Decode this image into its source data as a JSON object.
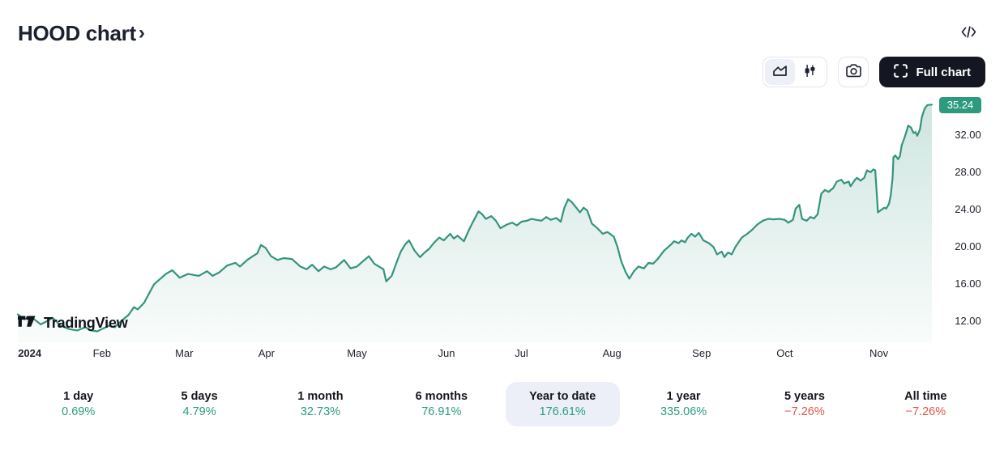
{
  "header": {
    "title": "HOOD chart",
    "chevron": "›"
  },
  "toolbar": {
    "full_chart_label": "Full chart"
  },
  "attribution": {
    "label": "TradingView"
  },
  "colors": {
    "accent": "#2e9a7d",
    "positive": "#2a9d7e",
    "negative": "#e0544b",
    "selected_bg": "#edeff8",
    "dark_button": "#141722",
    "line": "#33947c"
  },
  "chart_data": {
    "type": "area",
    "symbol": "HOOD",
    "title": "HOOD chart",
    "last_price": "35.24",
    "last_price_value": 35.24,
    "ylim": [
      9.7,
      35.7
    ],
    "grid": false,
    "legend_position": "none",
    "y_ticks": [
      {
        "label": "32.00",
        "value": 32
      },
      {
        "label": "28.00",
        "value": 28
      },
      {
        "label": "24.00",
        "value": 24
      },
      {
        "label": "20.00",
        "value": 20
      },
      {
        "label": "16.00",
        "value": 16
      },
      {
        "label": "12.00",
        "value": 12
      }
    ],
    "x_ticks": [
      {
        "label": "2024",
        "pos": 0.013,
        "bold": true
      },
      {
        "label": "Feb",
        "pos": 0.092
      },
      {
        "label": "Mar",
        "pos": 0.182
      },
      {
        "label": "Apr",
        "pos": 0.272
      },
      {
        "label": "May",
        "pos": 0.371
      },
      {
        "label": "Jun",
        "pos": 0.469
      },
      {
        "label": "Jul",
        "pos": 0.551
      },
      {
        "label": "Aug",
        "pos": 0.65
      },
      {
        "label": "Sep",
        "pos": 0.748
      },
      {
        "label": "Oct",
        "pos": 0.839
      },
      {
        "label": "Nov",
        "pos": 0.942
      }
    ],
    "points": [
      [
        0,
        12.78
      ],
      [
        0.007,
        12.26
      ],
      [
        0.016,
        12.4
      ],
      [
        0.025,
        11.7
      ],
      [
        0.032,
        12.05
      ],
      [
        0.038,
        12.4
      ],
      [
        0.047,
        11.57
      ],
      [
        0.056,
        11.2
      ],
      [
        0.065,
        11.05
      ],
      [
        0.074,
        11.4
      ],
      [
        0.08,
        11.05
      ],
      [
        0.087,
        10.96
      ],
      [
        0.092,
        11.2
      ],
      [
        0.1,
        11.57
      ],
      [
        0.106,
        11.4
      ],
      [
        0.113,
        12.05
      ],
      [
        0.121,
        12.7
      ],
      [
        0.127,
        13.56
      ],
      [
        0.131,
        13.3
      ],
      [
        0.138,
        14.0
      ],
      [
        0.149,
        16.0
      ],
      [
        0.162,
        17.1
      ],
      [
        0.169,
        17.5
      ],
      [
        0.177,
        16.7
      ],
      [
        0.186,
        17.1
      ],
      [
        0.198,
        16.9
      ],
      [
        0.207,
        17.4
      ],
      [
        0.213,
        16.9
      ],
      [
        0.22,
        17.25
      ],
      [
        0.229,
        18.0
      ],
      [
        0.238,
        18.3
      ],
      [
        0.243,
        17.9
      ],
      [
        0.251,
        18.6
      ],
      [
        0.257,
        19.0
      ],
      [
        0.262,
        19.3
      ],
      [
        0.266,
        20.2
      ],
      [
        0.271,
        19.9
      ],
      [
        0.277,
        19.0
      ],
      [
        0.284,
        18.6
      ],
      [
        0.291,
        18.8
      ],
      [
        0.3,
        18.7
      ],
      [
        0.309,
        17.9
      ],
      [
        0.316,
        17.6
      ],
      [
        0.322,
        18.1
      ],
      [
        0.329,
        17.4
      ],
      [
        0.335,
        17.9
      ],
      [
        0.342,
        17.6
      ],
      [
        0.348,
        17.8
      ],
      [
        0.357,
        18.6
      ],
      [
        0.364,
        17.7
      ],
      [
        0.371,
        17.9
      ],
      [
        0.378,
        18.5
      ],
      [
        0.384,
        19.0
      ],
      [
        0.39,
        18.2
      ],
      [
        0.395,
        17.9
      ],
      [
        0.4,
        17.6
      ],
      [
        0.403,
        16.3
      ],
      [
        0.409,
        16.9
      ],
      [
        0.415,
        18.5
      ],
      [
        0.419,
        19.5
      ],
      [
        0.424,
        20.3
      ],
      [
        0.428,
        20.7
      ],
      [
        0.434,
        19.6
      ],
      [
        0.44,
        18.9
      ],
      [
        0.445,
        19.4
      ],
      [
        0.45,
        19.8
      ],
      [
        0.455,
        20.4
      ],
      [
        0.461,
        21.0
      ],
      [
        0.466,
        20.7
      ],
      [
        0.473,
        21.4
      ],
      [
        0.477,
        20.9
      ],
      [
        0.481,
        21.2
      ],
      [
        0.488,
        20.6
      ],
      [
        0.493,
        21.7
      ],
      [
        0.497,
        22.5
      ],
      [
        0.504,
        23.8
      ],
      [
        0.508,
        23.5
      ],
      [
        0.512,
        23.0
      ],
      [
        0.518,
        23.3
      ],
      [
        0.523,
        22.8
      ],
      [
        0.528,
        22.0
      ],
      [
        0.535,
        22.4
      ],
      [
        0.541,
        22.6
      ],
      [
        0.546,
        22.3
      ],
      [
        0.551,
        22.7
      ],
      [
        0.557,
        22.8
      ],
      [
        0.562,
        23.0
      ],
      [
        0.567,
        22.9
      ],
      [
        0.573,
        22.8
      ],
      [
        0.578,
        23.2
      ],
      [
        0.583,
        22.9
      ],
      [
        0.589,
        23.1
      ],
      [
        0.594,
        22.7
      ],
      [
        0.598,
        24.2
      ],
      [
        0.602,
        25.1
      ],
      [
        0.606,
        24.8
      ],
      [
        0.611,
        24.2
      ],
      [
        0.615,
        23.7
      ],
      [
        0.619,
        24.2
      ],
      [
        0.623,
        23.9
      ],
      [
        0.628,
        22.5
      ],
      [
        0.634,
        22.0
      ],
      [
        0.64,
        21.4
      ],
      [
        0.645,
        21.6
      ],
      [
        0.652,
        21.1
      ],
      [
        0.656,
        20.0
      ],
      [
        0.66,
        18.5
      ],
      [
        0.665,
        17.3
      ],
      [
        0.669,
        16.6
      ],
      [
        0.674,
        17.4
      ],
      [
        0.679,
        17.9
      ],
      [
        0.685,
        17.7
      ],
      [
        0.69,
        18.3
      ],
      [
        0.695,
        18.2
      ],
      [
        0.7,
        18.7
      ],
      [
        0.707,
        19.6
      ],
      [
        0.714,
        20.2
      ],
      [
        0.718,
        20.6
      ],
      [
        0.723,
        20.4
      ],
      [
        0.726,
        20.7
      ],
      [
        0.73,
        20.5
      ],
      [
        0.733,
        21.0
      ],
      [
        0.737,
        21.4
      ],
      [
        0.741,
        21.1
      ],
      [
        0.745,
        21.5
      ],
      [
        0.75,
        20.7
      ],
      [
        0.756,
        20.4
      ],
      [
        0.761,
        20.0
      ],
      [
        0.765,
        19.2
      ],
      [
        0.77,
        19.5
      ],
      [
        0.773,
        18.9
      ],
      [
        0.777,
        19.4
      ],
      [
        0.781,
        19.2
      ],
      [
        0.785,
        20.0
      ],
      [
        0.792,
        21.0
      ],
      [
        0.798,
        21.4
      ],
      [
        0.803,
        21.8
      ],
      [
        0.809,
        22.4
      ],
      [
        0.815,
        22.8
      ],
      [
        0.821,
        23.0
      ],
      [
        0.827,
        22.95
      ],
      [
        0.833,
        23.0
      ],
      [
        0.839,
        22.9
      ],
      [
        0.843,
        22.6
      ],
      [
        0.848,
        22.9
      ],
      [
        0.851,
        24.1
      ],
      [
        0.855,
        24.5
      ],
      [
        0.858,
        23.0
      ],
      [
        0.863,
        22.8
      ],
      [
        0.867,
        23.2
      ],
      [
        0.871,
        23.05
      ],
      [
        0.875,
        23.5
      ],
      [
        0.879,
        25.7
      ],
      [
        0.883,
        26.1
      ],
      [
        0.887,
        25.9
      ],
      [
        0.892,
        26.3
      ],
      [
        0.896,
        27.0
      ],
      [
        0.901,
        27.2
      ],
      [
        0.904,
        26.8
      ],
      [
        0.909,
        27.0
      ],
      [
        0.911,
        26.5
      ],
      [
        0.916,
        27.2
      ],
      [
        0.918,
        27.4
      ],
      [
        0.922,
        27.1
      ],
      [
        0.926,
        27.4
      ],
      [
        0.929,
        28.2
      ],
      [
        0.933,
        28.0
      ],
      [
        0.936,
        28.3
      ],
      [
        0.938,
        28.2
      ],
      [
        0.94,
        25.3
      ],
      [
        0.941,
        23.7
      ],
      [
        0.945,
        24.0
      ],
      [
        0.948,
        24.2
      ],
      [
        0.95,
        24.1
      ],
      [
        0.953,
        24.6
      ],
      [
        0.955,
        25.5
      ],
      [
        0.957,
        27.4
      ],
      [
        0.958,
        29.6
      ],
      [
        0.96,
        29.8
      ],
      [
        0.963,
        29.4
      ],
      [
        0.965,
        29.7
      ],
      [
        0.967,
        30.9
      ],
      [
        0.97,
        31.7
      ],
      [
        0.973,
        32.6
      ],
      [
        0.974,
        33.0
      ],
      [
        0.977,
        32.8
      ],
      [
        0.98,
        32.2
      ],
      [
        0.982,
        32.3
      ],
      [
        0.984,
        31.9
      ],
      [
        0.987,
        32.6
      ],
      [
        0.989,
        33.9
      ],
      [
        0.992,
        34.8
      ],
      [
        0.995,
        35.2
      ],
      [
        1,
        35.24
      ]
    ]
  },
  "periods": {
    "items": [
      {
        "label": "1 day",
        "value": "0.69%",
        "direction": "positive",
        "selected": false
      },
      {
        "label": "5 days",
        "value": "4.79%",
        "direction": "positive",
        "selected": false
      },
      {
        "label": "1 month",
        "value": "32.73%",
        "direction": "positive",
        "selected": false
      },
      {
        "label": "6 months",
        "value": "76.91%",
        "direction": "positive",
        "selected": false
      },
      {
        "label": "Year to date",
        "value": "176.61%",
        "direction": "positive",
        "selected": true
      },
      {
        "label": "1 year",
        "value": "335.06%",
        "direction": "positive",
        "selected": false
      },
      {
        "label": "5 years",
        "value": "−7.26%",
        "direction": "negative",
        "selected": false
      },
      {
        "label": "All time",
        "value": "−7.26%",
        "direction": "negative",
        "selected": false
      }
    ]
  }
}
